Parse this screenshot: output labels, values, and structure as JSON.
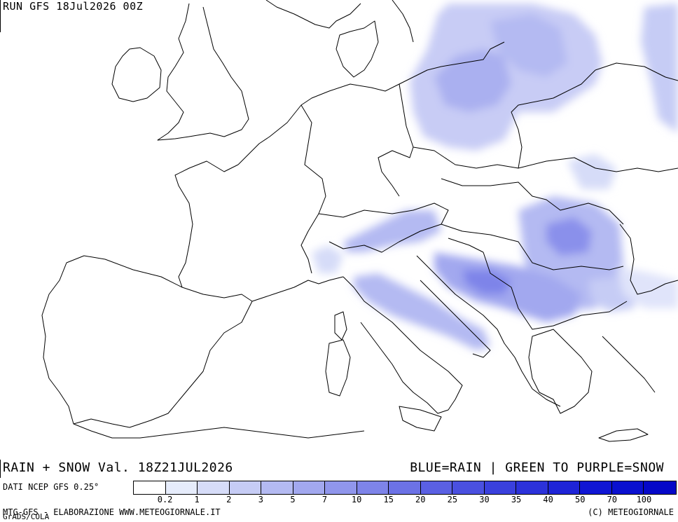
{
  "header": {
    "run_label": "RUN GFS 18Jul2026 00Z"
  },
  "map": {
    "region": "Europe",
    "precip_color_scale": "blue",
    "country_names_shown": false
  },
  "caption": {
    "left": "RAIN + SNOW Val. 18Z21JUL2026",
    "right": "BLUE=RAIN | GREEN TO PURPLE=SNOW"
  },
  "legend": {
    "source": "DATI NCEP GFS 0.25°",
    "colors": [
      "#ffffff",
      "#e6ecfb",
      "#d6dcf8",
      "#c6ccf5",
      "#b4baf2",
      "#a2a8ef",
      "#9096ec",
      "#7e84e9",
      "#6c72e6",
      "#5a60e3",
      "#4a50e0",
      "#3a40dd",
      "#2c32da",
      "#1e24d7",
      "#1016d4",
      "#0a10cf"
    ],
    "values": [
      "0.2",
      "1",
      "2",
      "3",
      "5",
      "7",
      "10",
      "15",
      "20",
      "25",
      "30",
      "35",
      "40",
      "50",
      "70",
      "100"
    ]
  },
  "footer": {
    "left": "MTG-GFS - ELABORAZIONE WWW.METEOGIORNALE.IT",
    "left_under": "GrADS/COLA",
    "right": "(C) METEOGIORNALE"
  }
}
